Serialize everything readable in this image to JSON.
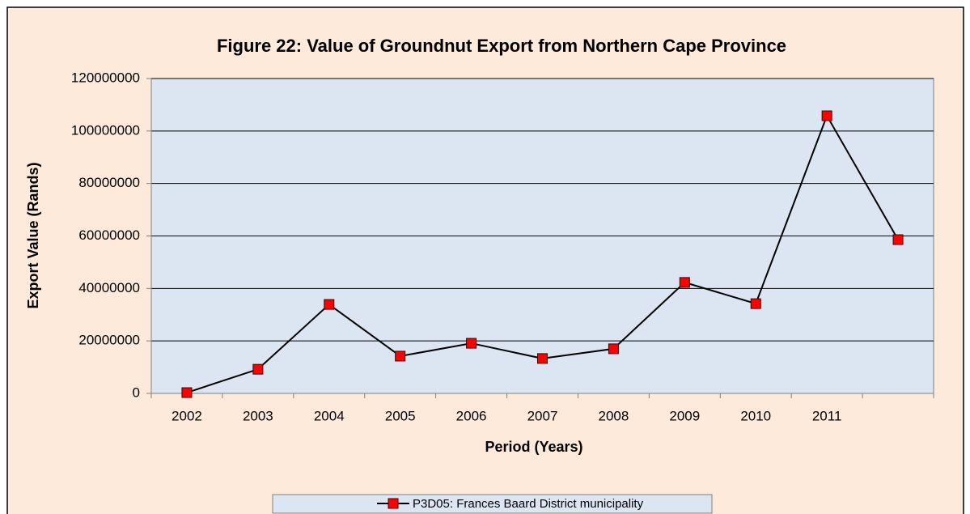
{
  "chart_data": {
    "type": "line",
    "title": "Figure 22: Value of Groundnut Export from Northern Cape Province",
    "x_label": "Period (Years)",
    "y_label": "Export Value (Rands)",
    "categories": [
      "2002",
      "2003",
      "2004",
      "2005",
      "2006",
      "2007",
      "2008",
      "2009",
      "2010",
      "2011",
      null
    ],
    "series": [
      {
        "name": "P3D05: Frances Baard District municipality",
        "color": "#000000",
        "marker_color": "#ff0000",
        "values": [
          300000,
          9200000,
          33900000,
          14200000,
          19100000,
          13300000,
          17000000,
          42300000,
          34200000,
          105800000,
          58600000
        ]
      }
    ],
    "ylim": [
      0,
      120000000
    ],
    "yticks": [
      0,
      20000000,
      40000000,
      60000000,
      80000000,
      100000000,
      120000000
    ],
    "grid": true,
    "legend": "bottom"
  }
}
